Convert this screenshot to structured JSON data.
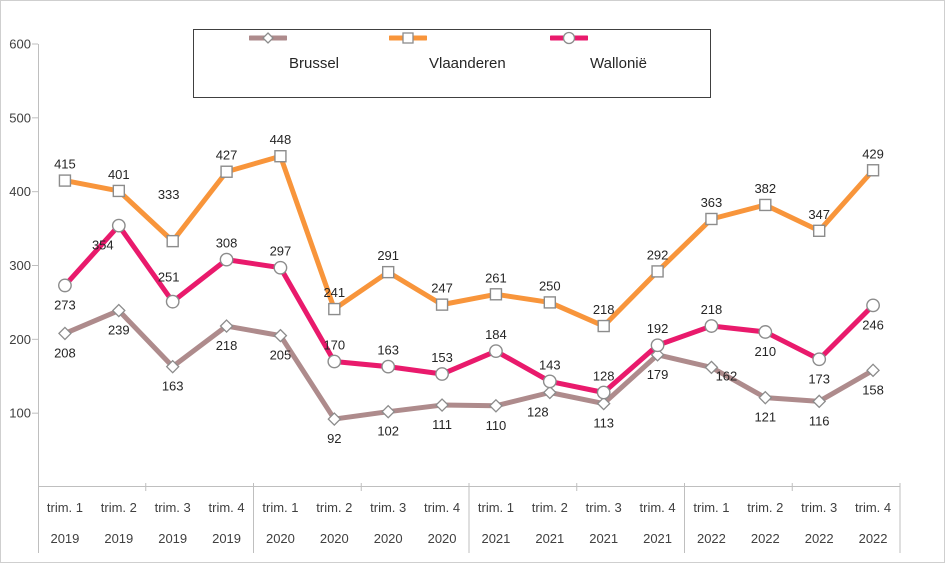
{
  "chart_data": {
    "type": "line",
    "title": "",
    "xlabel": "",
    "ylabel": "",
    "ylim": [
      0,
      600
    ],
    "y_ticks": [
      100,
      200,
      300,
      400,
      500,
      600
    ],
    "grid": false,
    "legend_position": "top",
    "axis_color": "#BFBFBF",
    "axis_text_color": "#404040",
    "data_label_color": "#262626",
    "marker_stroke_color": "#8C8C8C",
    "categories": [
      {
        "quarter": "trim. 1",
        "year": "2019"
      },
      {
        "quarter": "trim. 2",
        "year": "2019"
      },
      {
        "quarter": "trim. 3",
        "year": "2019"
      },
      {
        "quarter": "trim. 4",
        "year": "2019"
      },
      {
        "quarter": "trim. 1",
        "year": "2020"
      },
      {
        "quarter": "trim. 2",
        "year": "2020"
      },
      {
        "quarter": "trim. 3",
        "year": "2020"
      },
      {
        "quarter": "trim. 4",
        "year": "2020"
      },
      {
        "quarter": "trim. 1",
        "year": "2021"
      },
      {
        "quarter": "trim. 2",
        "year": "2021"
      },
      {
        "quarter": "trim. 3",
        "year": "2021"
      },
      {
        "quarter": "trim. 4",
        "year": "2021"
      },
      {
        "quarter": "trim. 1",
        "year": "2022"
      },
      {
        "quarter": "trim. 2",
        "year": "2022"
      },
      {
        "quarter": "trim. 3",
        "year": "2022"
      },
      {
        "quarter": "trim. 4",
        "year": "2022"
      }
    ],
    "series": [
      {
        "name": "Brussel",
        "color": "#AE8B8C",
        "marker": "diamond",
        "values": [
          208,
          239,
          163,
          218,
          205,
          92,
          102,
          111,
          110,
          128,
          113,
          179,
          162,
          121,
          116,
          158
        ]
      },
      {
        "name": "Vlaanderen",
        "color": "#F8953B",
        "marker": "square",
        "values": [
          415,
          401,
          333,
          427,
          448,
          241,
          291,
          247,
          261,
          250,
          218,
          292,
          363,
          382,
          347,
          429
        ]
      },
      {
        "name": "Wallonië",
        "color": "#E91A6C",
        "marker": "circle",
        "values": [
          273,
          354,
          251,
          308,
          297,
          170,
          163,
          153,
          184,
          143,
          128,
          192,
          218,
          210,
          173,
          246
        ]
      }
    ]
  }
}
